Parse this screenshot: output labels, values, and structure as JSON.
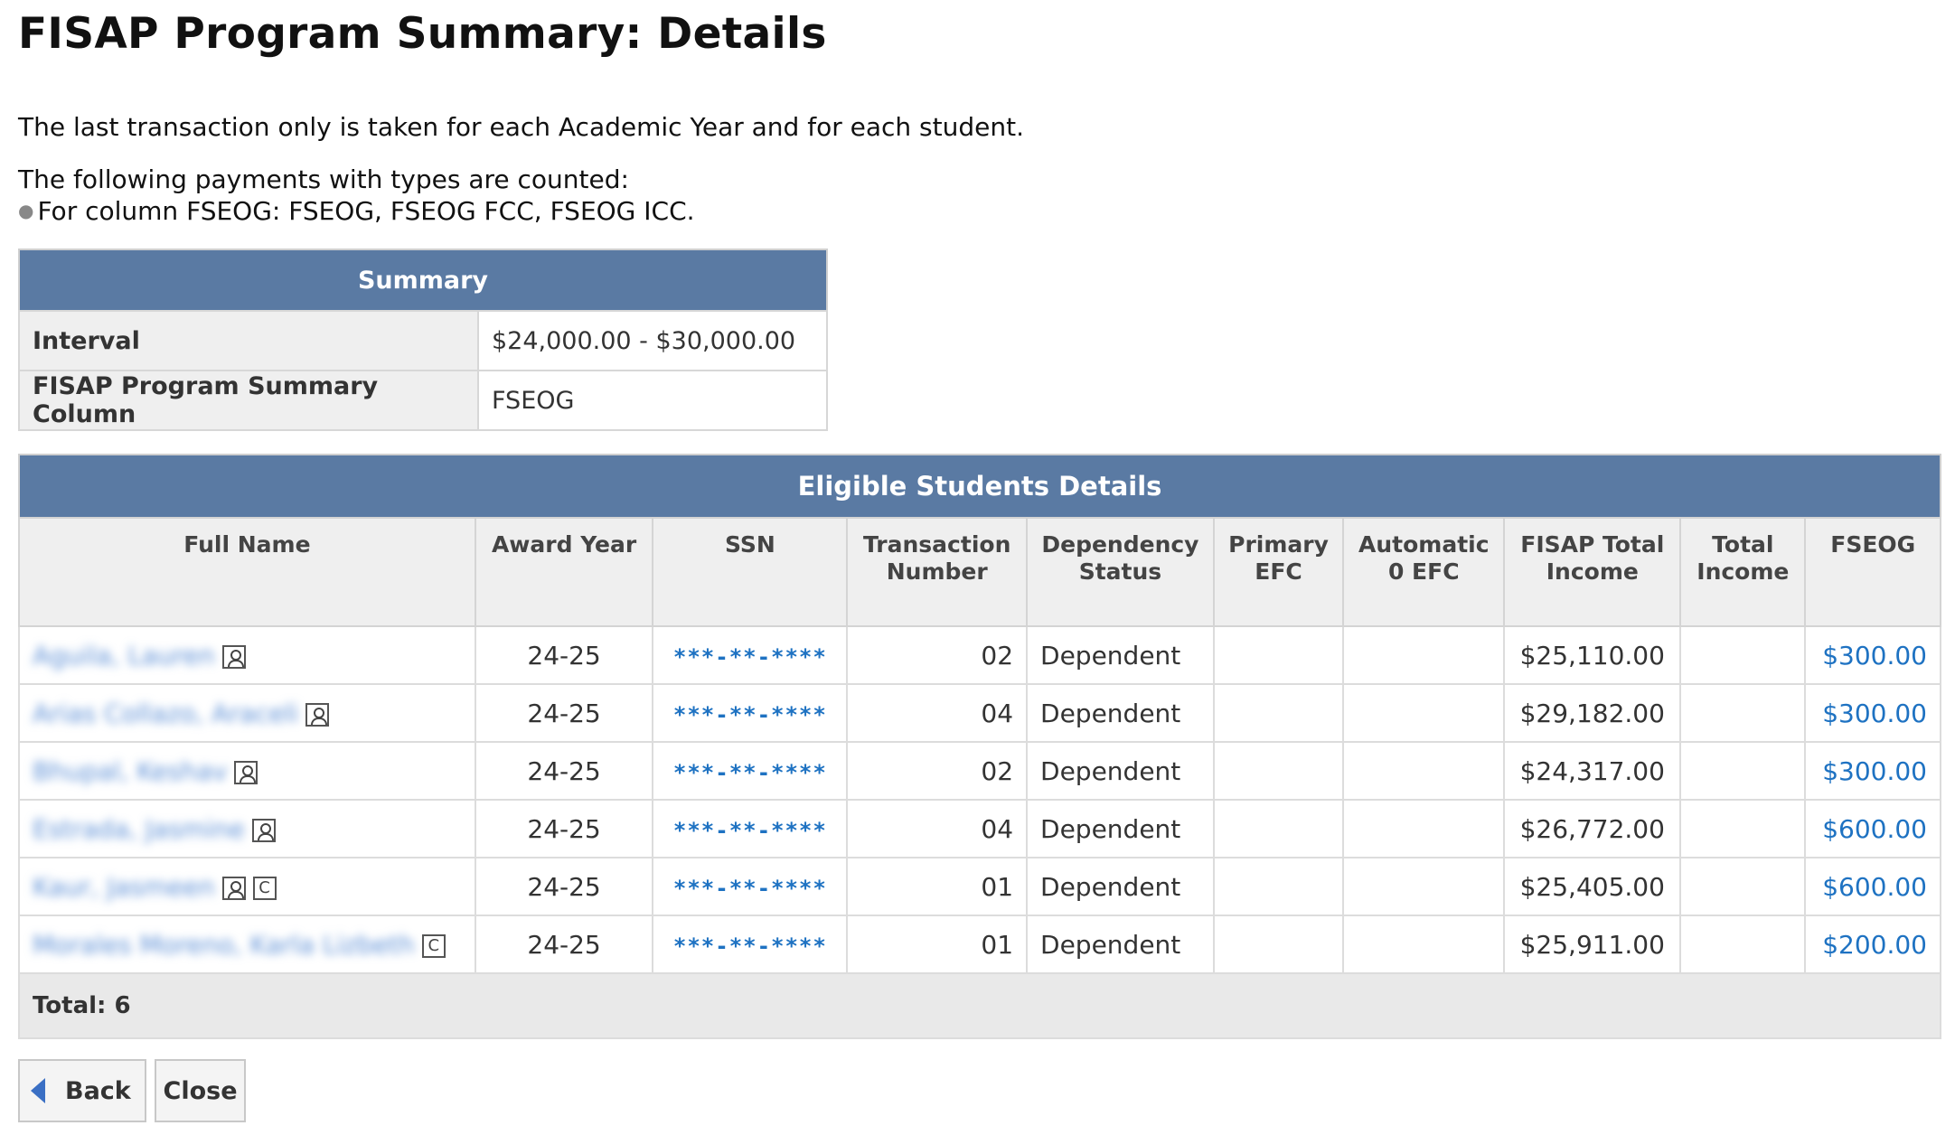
{
  "page": {
    "title": "FISAP Program Summary: Details",
    "intro_line1": "The last transaction only is taken for each Academic Year and for each student.",
    "intro_line2": "The following payments with types are counted:",
    "intro_bullet": "For column FSEOG: FSEOG, FSEOG FCC, FSEOG ICC."
  },
  "summary": {
    "header": "Summary",
    "rows": [
      {
        "label": "Interval",
        "value": "$24,000.00 - $30,000.00"
      },
      {
        "label": "FISAP Program Summary Column",
        "value": "FSEOG"
      }
    ]
  },
  "students": {
    "header": "Eligible Students Details",
    "columns": [
      "Full Name",
      "Award Year",
      "SSN",
      "Transaction Number",
      "Dependency Status",
      "Primary EFC",
      "Automatic 0 EFC",
      "FISAP Total Income",
      "Total Income",
      "FSEOG"
    ],
    "rows": [
      {
        "name": "Aguila, Lauren",
        "icons": [
          "person"
        ],
        "award_year": "24-25",
        "ssn": "***-**-****",
        "transaction": "02",
        "dependency": "Dependent",
        "primary_efc": "",
        "auto_efc": "",
        "fisap_income": "$25,110.00",
        "total_income": "",
        "fseog": "$300.00"
      },
      {
        "name": "Arias Collazo, Araceli",
        "icons": [
          "person"
        ],
        "award_year": "24-25",
        "ssn": "***-**-****",
        "transaction": "04",
        "dependency": "Dependent",
        "primary_efc": "",
        "auto_efc": "",
        "fisap_income": "$29,182.00",
        "total_income": "",
        "fseog": "$300.00"
      },
      {
        "name": "Bhupal, Keshav",
        "icons": [
          "person"
        ],
        "award_year": "24-25",
        "ssn": "***-**-****",
        "transaction": "02",
        "dependency": "Dependent",
        "primary_efc": "",
        "auto_efc": "",
        "fisap_income": "$24,317.00",
        "total_income": "",
        "fseog": "$300.00"
      },
      {
        "name": "Estrada, Jasmine",
        "icons": [
          "person"
        ],
        "award_year": "24-25",
        "ssn": "***-**-****",
        "transaction": "04",
        "dependency": "Dependent",
        "primary_efc": "",
        "auto_efc": "",
        "fisap_income": "$26,772.00",
        "total_income": "",
        "fseog": "$600.00"
      },
      {
        "name": "Kaur, Jasmeen",
        "icons": [
          "person",
          "c"
        ],
        "award_year": "24-25",
        "ssn": "***-**-****",
        "transaction": "01",
        "dependency": "Dependent",
        "primary_efc": "",
        "auto_efc": "",
        "fisap_income": "$25,405.00",
        "total_income": "",
        "fseog": "$600.00"
      },
      {
        "name": "Morales Moreno, Karla Lizbeth",
        "icons": [
          "c"
        ],
        "award_year": "24-25",
        "ssn": "***-**-****",
        "transaction": "01",
        "dependency": "Dependent",
        "primary_efc": "",
        "auto_efc": "",
        "fisap_income": "$25,911.00",
        "total_income": "",
        "fseog": "$200.00"
      }
    ],
    "total_label": "Total: 6"
  },
  "buttons": {
    "back_label": "Back",
    "close_label": "Close"
  },
  "colors": {
    "header_bar": "#5a7aa3",
    "link": "#1e72c2",
    "label_bg": "#efefef"
  },
  "icons": {
    "person": "person-icon",
    "c": "c-badge-icon",
    "back": "back-arrow-icon"
  }
}
